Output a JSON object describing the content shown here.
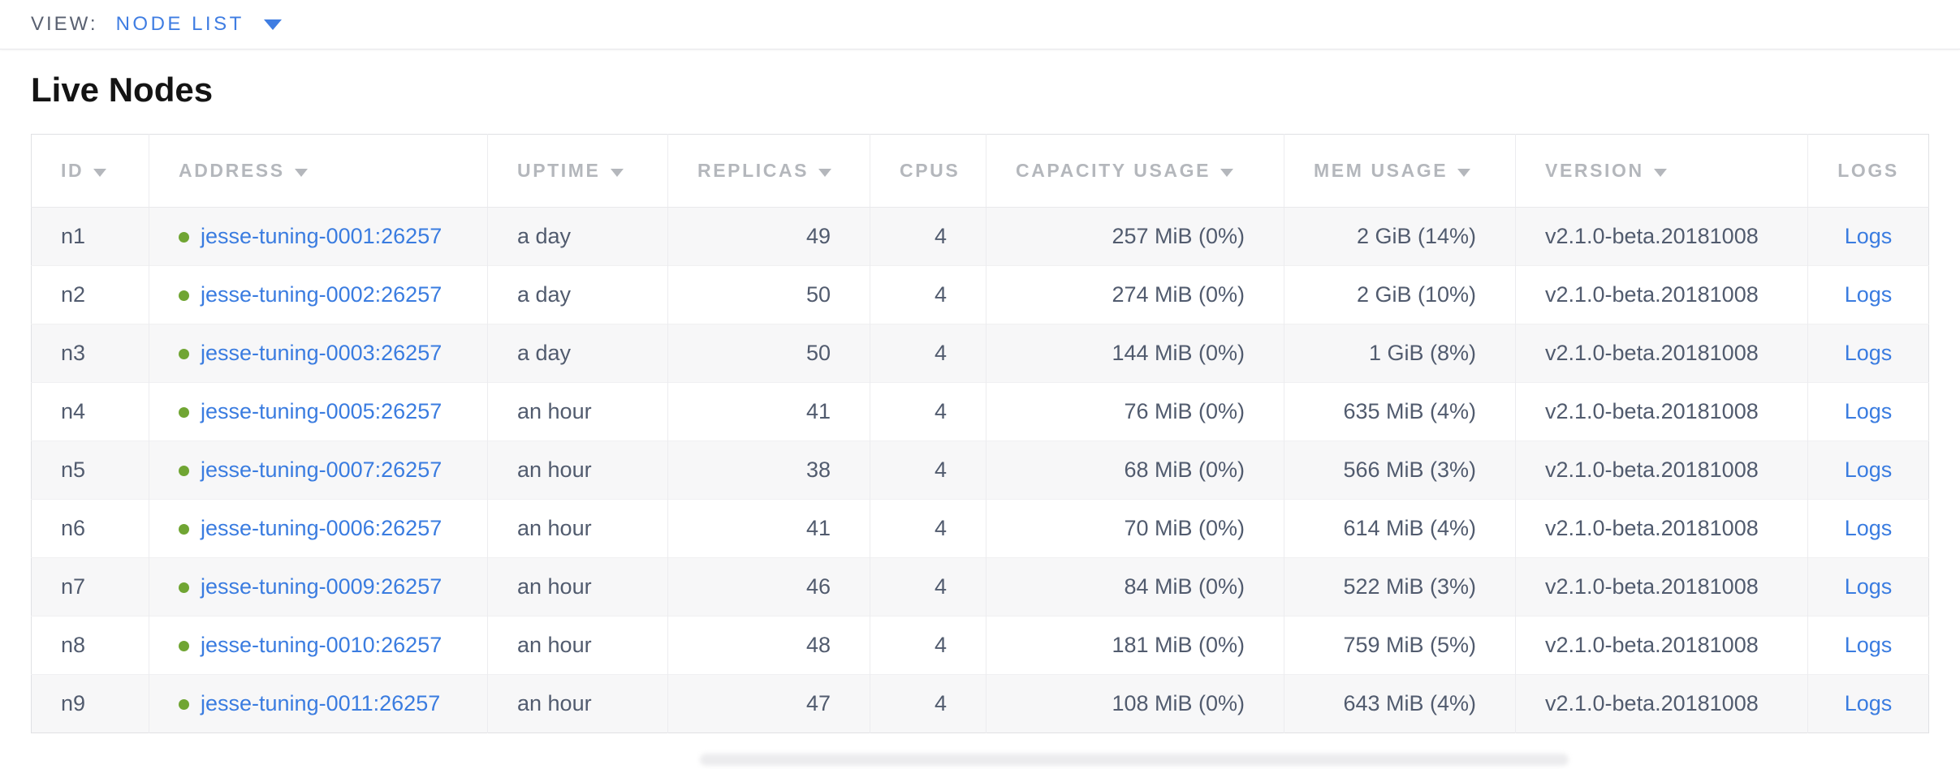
{
  "view_bar": {
    "label": "VIEW:",
    "selected": "NODE LIST"
  },
  "page": {
    "title": "Live Nodes"
  },
  "colors": {
    "accent_blue": "#3f7de2",
    "link_blue": "#3a7ce0",
    "live_green": "#70a533",
    "header_text": "#b4b7bc",
    "cell_text": "#515b6e",
    "stripe_bg": "#f7f7f8"
  },
  "table": {
    "columns": [
      {
        "key": "id",
        "label": "ID",
        "sortable": true,
        "align": "left"
      },
      {
        "key": "address",
        "label": "ADDRESS",
        "sortable": true,
        "align": "left"
      },
      {
        "key": "uptime",
        "label": "UPTIME",
        "sortable": true,
        "align": "left"
      },
      {
        "key": "replicas",
        "label": "REPLICAS",
        "sortable": true,
        "align": "right"
      },
      {
        "key": "cpus",
        "label": "CPUS",
        "sortable": false,
        "align": "right"
      },
      {
        "key": "capacity",
        "label": "CAPACITY USAGE",
        "sortable": true,
        "align": "right"
      },
      {
        "key": "mem",
        "label": "MEM USAGE",
        "sortable": true,
        "align": "right"
      },
      {
        "key": "version",
        "label": "VERSION",
        "sortable": true,
        "align": "left"
      },
      {
        "key": "logs",
        "label": "LOGS",
        "sortable": false,
        "align": "center"
      }
    ],
    "rows": [
      {
        "id": "n1",
        "address": "jesse-tuning-0001:26257",
        "uptime": "a day",
        "replicas": "49",
        "cpus": "4",
        "capacity": "257 MiB (0%)",
        "mem": "2 GiB (14%)",
        "version": "v2.1.0-beta.20181008",
        "logs": "Logs"
      },
      {
        "id": "n2",
        "address": "jesse-tuning-0002:26257",
        "uptime": "a day",
        "replicas": "50",
        "cpus": "4",
        "capacity": "274 MiB (0%)",
        "mem": "2 GiB (10%)",
        "version": "v2.1.0-beta.20181008",
        "logs": "Logs"
      },
      {
        "id": "n3",
        "address": "jesse-tuning-0003:26257",
        "uptime": "a day",
        "replicas": "50",
        "cpus": "4",
        "capacity": "144 MiB (0%)",
        "mem": "1 GiB (8%)",
        "version": "v2.1.0-beta.20181008",
        "logs": "Logs"
      },
      {
        "id": "n4",
        "address": "jesse-tuning-0005:26257",
        "uptime": "an hour",
        "replicas": "41",
        "cpus": "4",
        "capacity": "76 MiB (0%)",
        "mem": "635 MiB (4%)",
        "version": "v2.1.0-beta.20181008",
        "logs": "Logs"
      },
      {
        "id": "n5",
        "address": "jesse-tuning-0007:26257",
        "uptime": "an hour",
        "replicas": "38",
        "cpus": "4",
        "capacity": "68 MiB (0%)",
        "mem": "566 MiB (3%)",
        "version": "v2.1.0-beta.20181008",
        "logs": "Logs"
      },
      {
        "id": "n6",
        "address": "jesse-tuning-0006:26257",
        "uptime": "an hour",
        "replicas": "41",
        "cpus": "4",
        "capacity": "70 MiB (0%)",
        "mem": "614 MiB (4%)",
        "version": "v2.1.0-beta.20181008",
        "logs": "Logs"
      },
      {
        "id": "n7",
        "address": "jesse-tuning-0009:26257",
        "uptime": "an hour",
        "replicas": "46",
        "cpus": "4",
        "capacity": "84 MiB (0%)",
        "mem": "522 MiB (3%)",
        "version": "v2.1.0-beta.20181008",
        "logs": "Logs"
      },
      {
        "id": "n8",
        "address": "jesse-tuning-0010:26257",
        "uptime": "an hour",
        "replicas": "48",
        "cpus": "4",
        "capacity": "181 MiB (0%)",
        "mem": "759 MiB (5%)",
        "version": "v2.1.0-beta.20181008",
        "logs": "Logs"
      },
      {
        "id": "n9",
        "address": "jesse-tuning-0011:26257",
        "uptime": "an hour",
        "replicas": "47",
        "cpus": "4",
        "capacity": "108 MiB (0%)",
        "mem": "643 MiB (4%)",
        "version": "v2.1.0-beta.20181008",
        "logs": "Logs"
      }
    ]
  }
}
